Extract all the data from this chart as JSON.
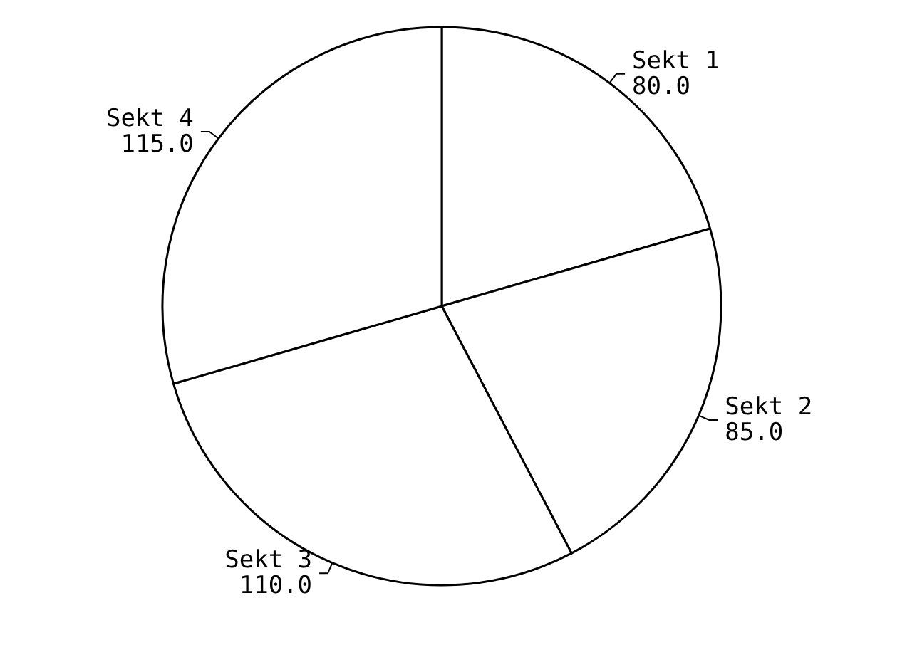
{
  "chart_data": {
    "type": "pie",
    "categories": [
      "Sekt 1",
      "Sekt 2",
      "Sekt 3",
      "Sekt 4"
    ],
    "values": [
      80,
      85,
      110,
      115
    ],
    "value_labels": [
      "80.0",
      "85.0",
      "110.0",
      "115.0"
    ],
    "colors": [
      "#ffffff",
      "#ffffff",
      "#ffffff",
      "#ffffff"
    ]
  }
}
